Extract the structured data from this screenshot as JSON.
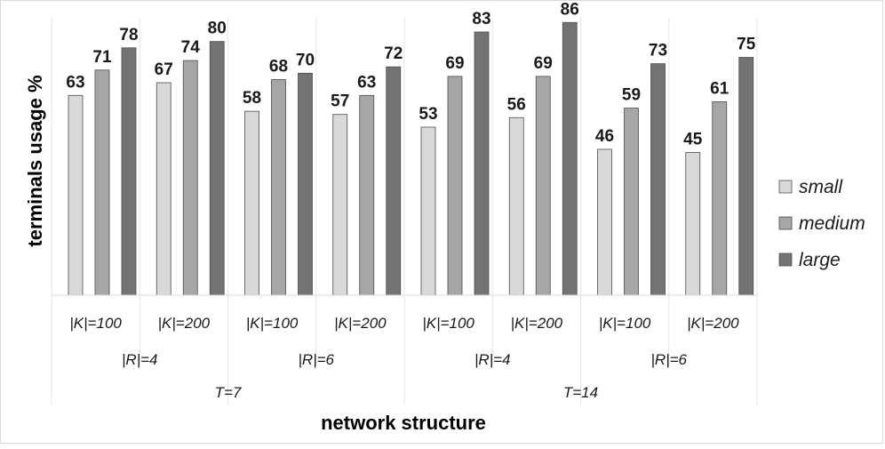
{
  "chart_data": {
    "type": "bar",
    "title": "",
    "xlabel": "network structure",
    "ylabel": "terminals usage %",
    "ylim": [
      0,
      90
    ],
    "categories": [
      "|K|=100",
      "|K|=200",
      "|K|=100",
      "|K|=200",
      "|K|=100",
      "|K|=200",
      "|K|=100",
      "|K|=200"
    ],
    "group_level2": [
      {
        "label": "|R|=4",
        "span": 2
      },
      {
        "label": "|R|=6",
        "span": 2
      },
      {
        "label": "|R|=4",
        "span": 2
      },
      {
        "label": "|R|=6",
        "span": 2
      }
    ],
    "group_level3": [
      {
        "label": "T=7",
        "span": 4
      },
      {
        "label": "T=14",
        "span": 4
      }
    ],
    "series": [
      {
        "name": "small",
        "color": "#d9d9d9",
        "values": [
          63,
          67,
          58,
          57,
          53,
          56,
          46,
          45
        ]
      },
      {
        "name": "medium",
        "color": "#a6a6a6",
        "values": [
          71,
          74,
          68,
          63,
          69,
          69,
          59,
          61
        ]
      },
      {
        "name": "large",
        "color": "#737373",
        "values": [
          78,
          80,
          70,
          72,
          83,
          86,
          73,
          75
        ]
      }
    ],
    "legend_position": "right",
    "grid": false
  }
}
